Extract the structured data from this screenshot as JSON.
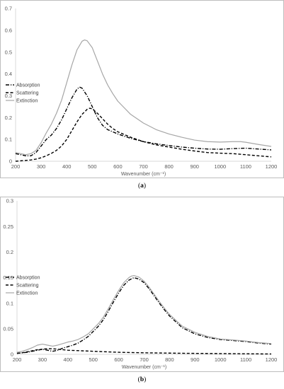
{
  "chart_data": [
    {
      "type": "line",
      "panel_label": "a",
      "xlabel": "Wavenumber (cm⁻¹)",
      "ylabel": "",
      "xlim": [
        200,
        1200
      ],
      "ylim": [
        0,
        0.7
      ],
      "xticks": [
        "200",
        "300",
        "400",
        "500",
        "600",
        "700",
        "800",
        "900",
        "1000",
        "1100",
        "1200"
      ],
      "yticks": [
        "0",
        "0.1",
        "0.2",
        "0.3",
        "0.4",
        "0.5",
        "0.6",
        "0.7"
      ],
      "legend_position": "left",
      "grid": false,
      "series": [
        {
          "name": "Absorption",
          "style": "dashdot",
          "color": "#000000",
          "x": [
            200,
            220,
            240,
            260,
            280,
            300,
            320,
            340,
            360,
            380,
            400,
            420,
            440,
            450,
            460,
            480,
            500,
            520,
            540,
            560,
            580,
            600,
            650,
            700,
            750,
            800,
            850,
            900,
            950,
            1000,
            1050,
            1100,
            1150,
            1200
          ],
          "y": [
            0.035,
            0.03,
            0.025,
            0.025,
            0.04,
            0.07,
            0.1,
            0.12,
            0.15,
            0.19,
            0.24,
            0.29,
            0.33,
            0.34,
            0.335,
            0.3,
            0.25,
            0.2,
            0.165,
            0.145,
            0.135,
            0.125,
            0.105,
            0.09,
            0.08,
            0.072,
            0.065,
            0.06,
            0.056,
            0.055,
            0.058,
            0.06,
            0.056,
            0.052
          ]
        },
        {
          "name": "Scattering",
          "style": "dashed",
          "color": "#000000",
          "x": [
            200,
            220,
            240,
            260,
            280,
            300,
            320,
            340,
            360,
            380,
            400,
            420,
            440,
            460,
            480,
            490,
            500,
            520,
            540,
            560,
            580,
            600,
            650,
            700,
            750,
            800,
            850,
            900,
            950,
            1000,
            1050,
            1100,
            1150,
            1200
          ],
          "y": [
            0.0,
            0.002,
            0.004,
            0.006,
            0.01,
            0.016,
            0.025,
            0.036,
            0.05,
            0.07,
            0.1,
            0.14,
            0.18,
            0.215,
            0.238,
            0.243,
            0.24,
            0.22,
            0.195,
            0.17,
            0.15,
            0.135,
            0.11,
            0.09,
            0.075,
            0.065,
            0.055,
            0.047,
            0.04,
            0.037,
            0.035,
            0.03,
            0.025,
            0.02
          ]
        },
        {
          "name": "Extinction",
          "style": "solid",
          "color": "#a6a6a6",
          "x": [
            200,
            220,
            240,
            260,
            280,
            300,
            320,
            340,
            360,
            380,
            400,
            420,
            440,
            460,
            470,
            480,
            500,
            520,
            540,
            560,
            580,
            600,
            650,
            700,
            750,
            800,
            850,
            900,
            950,
            1000,
            1050,
            1080,
            1100,
            1150,
            1200
          ],
          "y": [
            0.04,
            0.035,
            0.03,
            0.035,
            0.05,
            0.085,
            0.13,
            0.17,
            0.22,
            0.28,
            0.36,
            0.44,
            0.51,
            0.55,
            0.556,
            0.552,
            0.52,
            0.46,
            0.4,
            0.35,
            0.31,
            0.275,
            0.215,
            0.175,
            0.145,
            0.125,
            0.11,
            0.097,
            0.09,
            0.088,
            0.09,
            0.09,
            0.087,
            0.077,
            0.068
          ]
        }
      ]
    },
    {
      "type": "line",
      "panel_label": "b",
      "xlabel": "Wavenumber (cm⁻¹)",
      "ylabel": "",
      "xlim": [
        200,
        1200
      ],
      "ylim": [
        0,
        0.3
      ],
      "xticks": [
        "200",
        "300",
        "400",
        "500",
        "600",
        "700",
        "800",
        "900",
        "1000",
        "1100",
        "1200"
      ],
      "yticks": [
        "0",
        "0.05",
        "0.1",
        "0.15",
        "0.2",
        "0.25",
        "0.3"
      ],
      "legend_position": "left",
      "grid": false,
      "series": [
        {
          "name": "Absorption",
          "style": "dashdot",
          "color": "#000000",
          "x": [
            200,
            220,
            240,
            260,
            280,
            300,
            320,
            340,
            360,
            380,
            400,
            420,
            440,
            460,
            480,
            500,
            520,
            540,
            560,
            580,
            600,
            620,
            640,
            660,
            680,
            700,
            720,
            740,
            760,
            780,
            800,
            850,
            900,
            950,
            1000,
            1050,
            1100,
            1150,
            1200
          ],
          "y": [
            0.002,
            0.003,
            0.004,
            0.006,
            0.008,
            0.01,
            0.008,
            0.006,
            0.008,
            0.012,
            0.015,
            0.018,
            0.022,
            0.028,
            0.035,
            0.045,
            0.055,
            0.068,
            0.085,
            0.103,
            0.12,
            0.135,
            0.145,
            0.15,
            0.147,
            0.14,
            0.128,
            0.114,
            0.1,
            0.087,
            0.075,
            0.052,
            0.04,
            0.033,
            0.029,
            0.027,
            0.025,
            0.022,
            0.02
          ]
        },
        {
          "name": "Scattering",
          "style": "dashed",
          "color": "#000000",
          "x": [
            200,
            220,
            240,
            260,
            280,
            300,
            320,
            340,
            360,
            380,
            400,
            450,
            500,
            550,
            600,
            650,
            700,
            750,
            800,
            850,
            900,
            950,
            1000,
            1050,
            1100,
            1150,
            1200
          ],
          "y": [
            0.002,
            0.003,
            0.005,
            0.007,
            0.009,
            0.01,
            0.011,
            0.011,
            0.01,
            0.009,
            0.008,
            0.007,
            0.006,
            0.005,
            0.004,
            0.0035,
            0.003,
            0.0027,
            0.0024,
            0.0021,
            0.0019,
            0.0017,
            0.0015,
            0.0013,
            0.0011,
            0.0009,
            0.0007
          ]
        },
        {
          "name": "Extinction",
          "style": "solid",
          "color": "#a6a6a6",
          "x": [
            200,
            220,
            240,
            260,
            280,
            300,
            320,
            340,
            360,
            380,
            400,
            420,
            440,
            460,
            480,
            500,
            520,
            540,
            560,
            580,
            600,
            620,
            640,
            650,
            660,
            680,
            700,
            720,
            740,
            760,
            780,
            800,
            850,
            900,
            950,
            1000,
            1050,
            1100,
            1150,
            1200
          ],
          "y": [
            0.004,
            0.006,
            0.009,
            0.013,
            0.018,
            0.02,
            0.018,
            0.016,
            0.018,
            0.021,
            0.024,
            0.026,
            0.029,
            0.034,
            0.04,
            0.05,
            0.06,
            0.073,
            0.09,
            0.108,
            0.125,
            0.14,
            0.15,
            0.153,
            0.154,
            0.151,
            0.143,
            0.131,
            0.117,
            0.103,
            0.09,
            0.078,
            0.055,
            0.043,
            0.035,
            0.03,
            0.028,
            0.026,
            0.023,
            0.021
          ]
        }
      ]
    }
  ],
  "captions": [
    {
      "open": "(",
      "label": "a",
      "close": ")"
    },
    {
      "open": "(",
      "label": "b",
      "close": ")"
    }
  ]
}
